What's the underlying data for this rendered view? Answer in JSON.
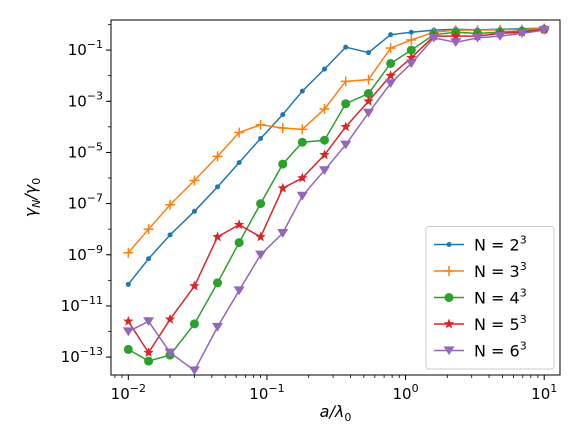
{
  "chart_data": {
    "type": "line",
    "xscale": "log",
    "yscale": "log",
    "xlim": [
      0.0075,
      13
    ],
    "ylim": [
      2e-14,
      1.5
    ],
    "xlabel_base": "a/λ",
    "xlabel_sub": "0",
    "ylabel_main": "γ",
    "ylabel_sub1": "N",
    "ylabel_mid": "/γ",
    "ylabel_sub2": "0",
    "x_ticks": [
      {
        "value": 0.01,
        "base": "10",
        "exp": "−2"
      },
      {
        "value": 0.1,
        "base": "10",
        "exp": "−1"
      },
      {
        "value": 1,
        "base": "10",
        "exp": "0"
      },
      {
        "value": 10,
        "base": "10",
        "exp": "1"
      }
    ],
    "y_ticks": [
      {
        "value": 1e-13,
        "base": "10",
        "exp": "−13"
      },
      {
        "value": 1e-11,
        "base": "10",
        "exp": "−11"
      },
      {
        "value": 1e-09,
        "base": "10",
        "exp": "−9"
      },
      {
        "value": 1e-07,
        "base": "10",
        "exp": "−7"
      },
      {
        "value": 1e-05,
        "base": "10",
        "exp": "−5"
      },
      {
        "value": 0.001,
        "base": "10",
        "exp": "−3"
      },
      {
        "value": 0.1,
        "base": "10",
        "exp": "−1"
      }
    ],
    "legend_position": "lower right",
    "grid": false,
    "x": [
      0.01,
      0.014,
      0.02,
      0.03,
      0.044,
      0.063,
      0.09,
      0.13,
      0.18,
      0.26,
      0.37,
      0.54,
      0.78,
      1.1,
      1.6,
      2.3,
      3.3,
      4.8,
      6.9,
      10
    ],
    "series": [
      {
        "name": "N = 2³",
        "legend_base": "N = 2",
        "legend_exp": "3",
        "color": "#1f77b4",
        "marker": "dot",
        "values": [
          7e-11,
          7e-10,
          6e-09,
          5e-08,
          4.5e-07,
          4e-06,
          3.5e-05,
          0.0003,
          0.0025,
          0.018,
          0.13,
          0.08,
          0.4,
          0.5,
          0.6,
          0.65,
          0.62,
          0.65,
          0.68,
          0.72
        ]
      },
      {
        "name": "N = 3³",
        "legend_base": "N = 3",
        "legend_exp": "3",
        "color": "#ff7f0e",
        "marker": "plus",
        "values": [
          1.2e-09,
          1e-08,
          9e-08,
          8e-07,
          7e-06,
          6e-05,
          0.00012,
          9e-05,
          8e-05,
          0.0005,
          0.006,
          0.007,
          0.12,
          0.25,
          0.5,
          0.6,
          0.6,
          0.62,
          0.64,
          0.7
        ]
      },
      {
        "name": "N = 4³",
        "legend_base": "N = 4",
        "legend_exp": "3",
        "color": "#2ca02c",
        "marker": "circle",
        "values": [
          2e-13,
          7e-14,
          1.2e-13,
          2e-12,
          8e-11,
          3e-09,
          1e-07,
          3.5e-06,
          2.5e-05,
          3e-05,
          0.0008,
          0.002,
          0.03,
          0.1,
          0.4,
          0.5,
          0.45,
          0.5,
          0.55,
          0.65
        ]
      },
      {
        "name": "N = 5³",
        "legend_base": "N = 5",
        "legend_exp": "3",
        "color": "#d62728",
        "marker": "star",
        "values": [
          2.5e-12,
          1.5e-13,
          3e-12,
          6e-11,
          5e-09,
          1.5e-08,
          5e-09,
          4e-07,
          1e-06,
          8e-06,
          0.0001,
          0.001,
          0.01,
          0.05,
          0.35,
          0.35,
          0.35,
          0.45,
          0.5,
          0.65
        ]
      },
      {
        "name": "N = 6³",
        "legend_base": "N = 6",
        "legend_exp": "3",
        "color": "#9467bd",
        "marker": "triangle-down",
        "values": [
          1e-12,
          2.5e-12,
          1.5e-13,
          3e-14,
          1.5e-12,
          4e-11,
          1e-09,
          7e-09,
          2e-07,
          2e-06,
          2e-05,
          0.00035,
          0.005,
          0.03,
          0.3,
          0.2,
          0.3,
          0.35,
          0.45,
          0.6
        ]
      }
    ]
  }
}
